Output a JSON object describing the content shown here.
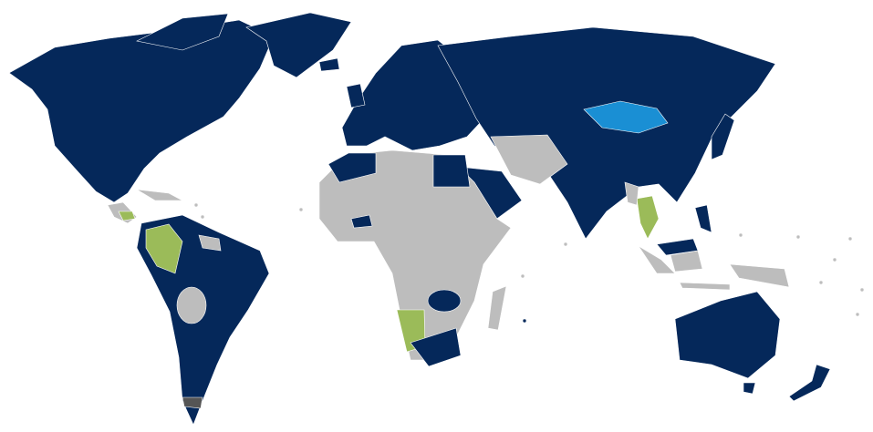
{
  "map": {
    "colors": {
      "primary": "#05285a",
      "other": "#bdbdbd",
      "highlight_blue": "#1a8fd4",
      "highlight_green": "#9bbb59",
      "dark_gray": "#555555",
      "background": "#ffffff"
    }
  }
}
